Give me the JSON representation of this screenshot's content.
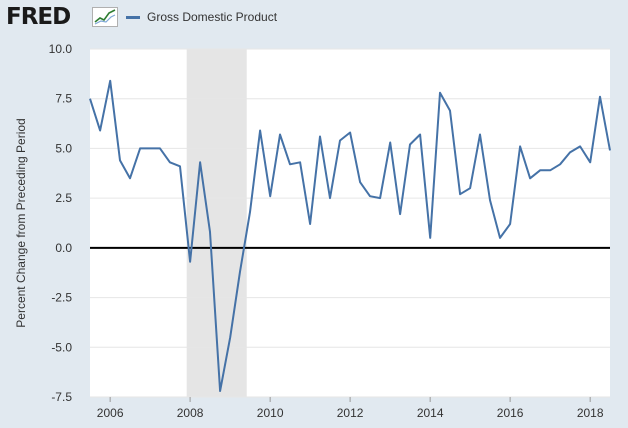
{
  "header": {
    "logo_text": "FRED",
    "logo_mark": "trend-line-icon"
  },
  "colors": {
    "series": "#4572a7",
    "recession": "#e5e5e5",
    "plot_bg": "#ffffff",
    "page_bg": "#e1e9f0",
    "zero_line": "#000000",
    "grid": "#e6e6e6"
  },
  "chart_data": {
    "type": "line",
    "title": "",
    "xlabel": "",
    "ylabel": "Percent Change from Preceding Period",
    "ylim": [
      -7.5,
      10.0
    ],
    "xlim": [
      "2005-07-01",
      "2018-07-01"
    ],
    "y_ticks": [
      "10.0",
      "7.5",
      "5.0",
      "2.5",
      "0.0",
      "-2.5",
      "-5.0",
      "-7.5"
    ],
    "x_ticks": [
      "2006",
      "2008",
      "2010",
      "2012",
      "2014",
      "2016",
      "2018"
    ],
    "grid": "horizontal",
    "legend": "top-left",
    "recessions": [
      {
        "start": "2007-12-01",
        "end": "2009-06-01"
      }
    ],
    "zero_line": true,
    "series": [
      {
        "name": "Gross Domestic Product",
        "x": [
          "2005-07-01",
          "2005-10-01",
          "2006-01-01",
          "2006-04-01",
          "2006-07-01",
          "2006-10-01",
          "2007-01-01",
          "2007-04-01",
          "2007-07-01",
          "2007-10-01",
          "2008-01-01",
          "2008-04-01",
          "2008-07-01",
          "2008-10-01",
          "2009-01-01",
          "2009-04-01",
          "2009-07-01",
          "2009-10-01",
          "2010-01-01",
          "2010-04-01",
          "2010-07-01",
          "2010-10-01",
          "2011-01-01",
          "2011-04-01",
          "2011-07-01",
          "2011-10-01",
          "2012-01-01",
          "2012-04-01",
          "2012-07-01",
          "2012-10-01",
          "2013-01-01",
          "2013-04-01",
          "2013-07-01",
          "2013-10-01",
          "2014-01-01",
          "2014-04-01",
          "2014-07-01",
          "2014-10-01",
          "2015-01-01",
          "2015-04-01",
          "2015-07-01",
          "2015-10-01",
          "2016-01-01",
          "2016-04-01",
          "2016-07-01",
          "2016-10-01",
          "2017-01-01",
          "2017-04-01",
          "2017-07-01",
          "2017-10-01",
          "2018-01-01",
          "2018-04-01",
          "2018-07-01"
        ],
        "values": [
          7.5,
          5.9,
          8.4,
          4.4,
          3.5,
          5.0,
          5.0,
          5.0,
          4.3,
          4.1,
          -0.7,
          4.3,
          0.8,
          -7.2,
          -4.5,
          -1.2,
          1.8,
          5.9,
          2.6,
          5.7,
          4.2,
          4.3,
          1.2,
          5.6,
          2.5,
          5.4,
          5.8,
          3.3,
          2.6,
          2.5,
          5.3,
          1.7,
          5.2,
          5.7,
          0.5,
          7.8,
          6.9,
          2.7,
          3.0,
          5.7,
          2.4,
          0.5,
          1.2,
          5.1,
          3.5,
          3.9,
          3.9,
          4.2,
          4.8,
          5.1,
          4.3,
          7.6,
          4.9
        ]
      }
    ]
  }
}
